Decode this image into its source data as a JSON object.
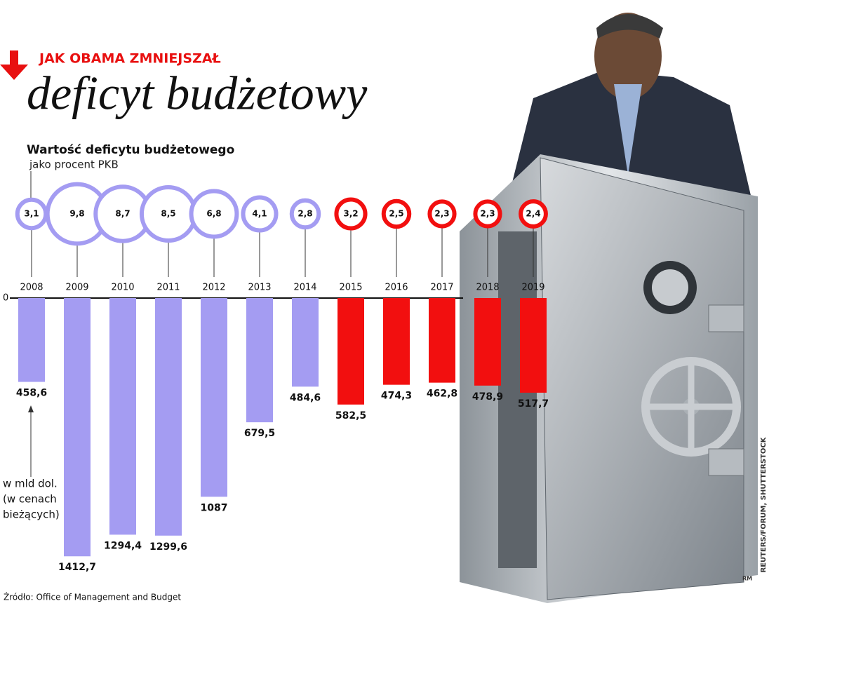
{
  "kicker": "JAK OBAMA ZMNIEJSZAŁ",
  "credit": "REUTERS/FORUM, SHUTTERSTOCK",
  "signature": "RM",
  "chart_data": {
    "type": "bar",
    "title": "deficyt budżetowy",
    "subtitle": "Wartość deficytu budżetowego",
    "percent_caption": "jako procent PKB",
    "unit_note": [
      "w mld dol.",
      "(w cenach",
      "bieżących)"
    ],
    "source": "Źródło: Office of Management and Budget",
    "categories": [
      "2008",
      "2009",
      "2010",
      "2011",
      "2012",
      "2013",
      "2014",
      "2015",
      "2016",
      "2017",
      "2018",
      "2019"
    ],
    "values": [
      458.6,
      1412.7,
      1294.4,
      1299.6,
      1087,
      679.5,
      484.6,
      582.5,
      474.3,
      462.8,
      478.9,
      517.7
    ],
    "value_labels": [
      "458,6",
      "1412,7",
      "1294,4",
      "1299,6",
      "1087",
      "679,5",
      "484,6",
      "582,5",
      "474,3",
      "462,8",
      "478,9",
      "517,7"
    ],
    "percent_values": [
      3.1,
      9.8,
      8.7,
      8.5,
      6.8,
      4.1,
      2.8,
      3.2,
      2.5,
      2.3,
      2.3,
      2.4
    ],
    "percent_labels": [
      "3,1",
      "9,8",
      "8,7",
      "8,5",
      "6,8",
      "4,1",
      "2,8",
      "3,2",
      "2,5",
      "2,3",
      "2,3",
      "2,4"
    ],
    "colors": [
      "#a49cf2",
      "#a49cf2",
      "#a49cf2",
      "#a49cf2",
      "#a49cf2",
      "#a49cf2",
      "#a49cf2",
      "#f20f0f",
      "#f20f0f",
      "#f20f0f",
      "#f20f0f",
      "#f20f0f"
    ],
    "ylim": [
      0,
      1500
    ],
    "yticks": [
      0
    ]
  }
}
